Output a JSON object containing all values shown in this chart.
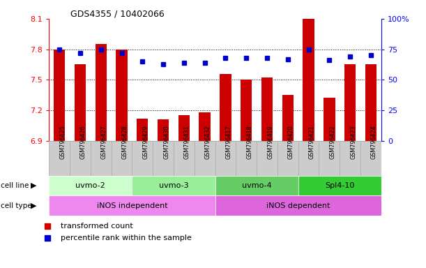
{
  "title": "GDS4355 / 10402066",
  "samples": [
    "GSM796425",
    "GSM796426",
    "GSM796427",
    "GSM796428",
    "GSM796429",
    "GSM796430",
    "GSM796431",
    "GSM796432",
    "GSM796417",
    "GSM796418",
    "GSM796419",
    "GSM796420",
    "GSM796421",
    "GSM796422",
    "GSM796423",
    "GSM796424"
  ],
  "red_values": [
    7.8,
    7.65,
    7.85,
    7.8,
    7.12,
    7.11,
    7.15,
    7.18,
    7.56,
    7.5,
    7.52,
    7.35,
    8.1,
    7.32,
    7.65,
    7.65
  ],
  "blue_values": [
    75,
    72,
    75,
    72,
    65,
    63,
    64,
    64,
    68,
    68,
    68,
    67,
    75,
    66,
    69,
    70
  ],
  "ylim_left": [
    6.9,
    8.1
  ],
  "ylim_right": [
    0,
    100
  ],
  "yticks_left": [
    6.9,
    7.2,
    7.5,
    7.8,
    8.1
  ],
  "yticks_right": [
    0,
    25,
    50,
    75,
    100
  ],
  "ytick_labels_left": [
    "6.9",
    "7.2",
    "7.5",
    "7.8",
    "8.1"
  ],
  "ytick_labels_right": [
    "0",
    "25",
    "50",
    "75",
    "100%"
  ],
  "hlines": [
    7.2,
    7.5,
    7.8
  ],
  "bar_color": "#cc0000",
  "dot_color": "#0000cc",
  "cell_lines": [
    {
      "label": "uvmo-2",
      "start": 0,
      "end": 4,
      "color": "#ccffcc"
    },
    {
      "label": "uvmo-3",
      "start": 4,
      "end": 8,
      "color": "#99ee99"
    },
    {
      "label": "uvmo-4",
      "start": 8,
      "end": 12,
      "color": "#66cc66"
    },
    {
      "label": "Spl4-10",
      "start": 12,
      "end": 16,
      "color": "#33cc33"
    }
  ],
  "cell_types": [
    {
      "label": "iNOS independent",
      "start": 0,
      "end": 8,
      "color": "#ee88ee"
    },
    {
      "label": "iNOS dependent",
      "start": 8,
      "end": 16,
      "color": "#dd66dd"
    }
  ],
  "cell_line_label": "cell line",
  "cell_type_label": "cell type",
  "legend_red": "transformed count",
  "legend_blue": "percentile rank within the sample",
  "bar_bottom": 6.9,
  "sample_bg_color": "#cccccc",
  "sample_border_color": "#aaaaaa"
}
